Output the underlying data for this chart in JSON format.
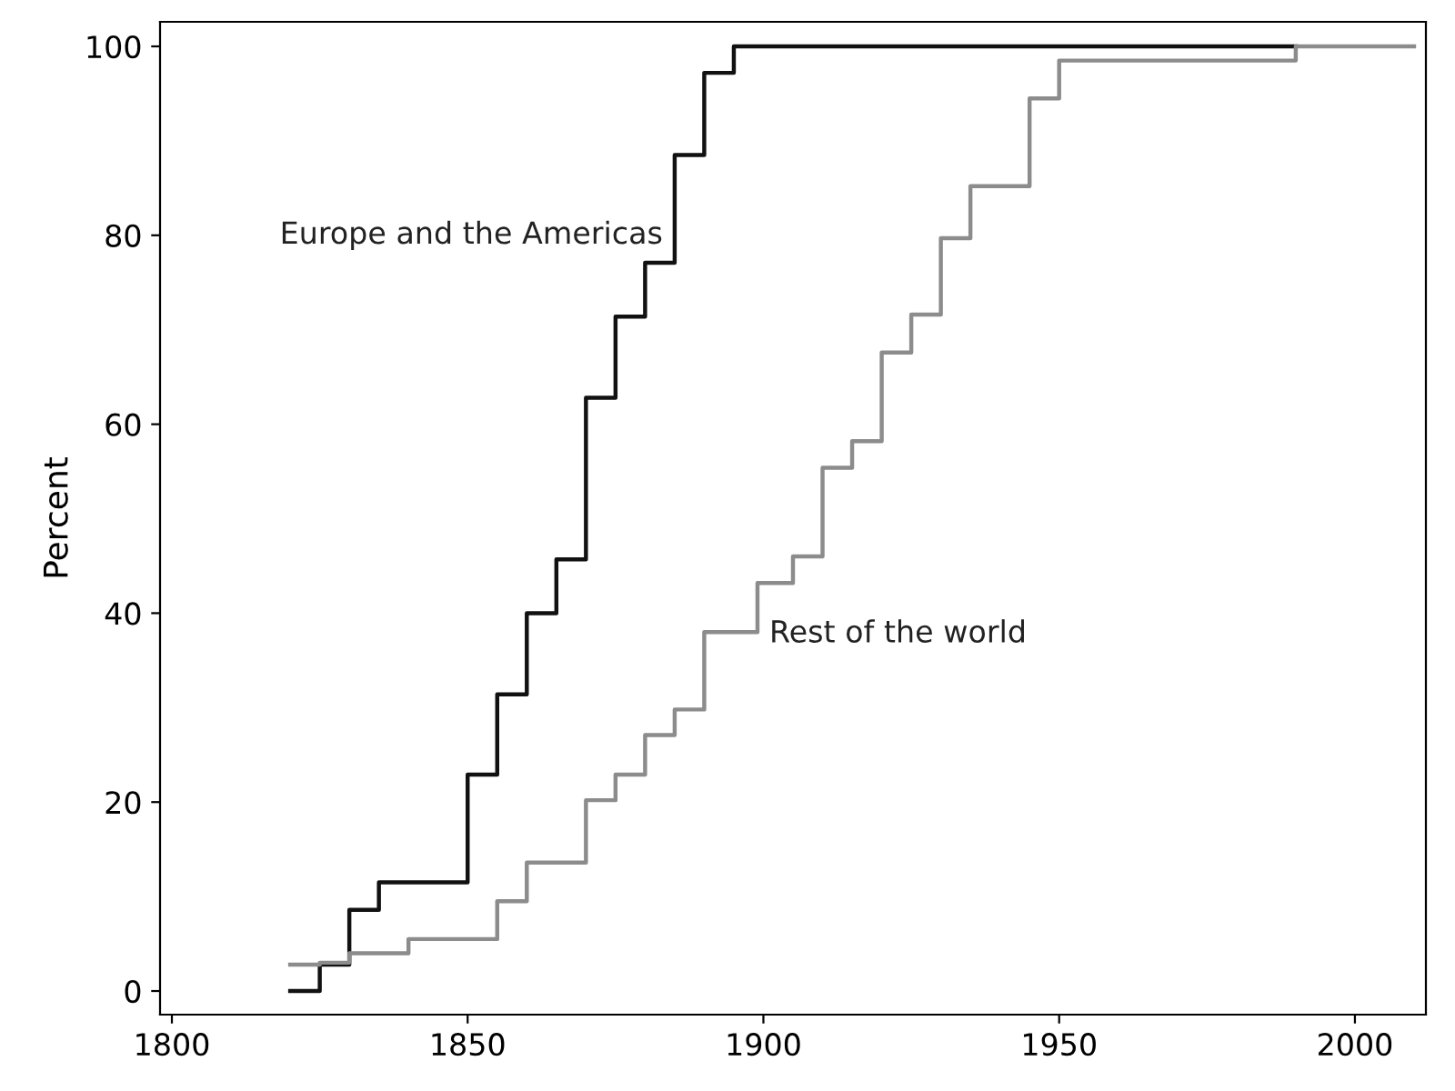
{
  "chart_data": {
    "type": "step",
    "ylabel": "Percent",
    "xlim": [
      1798,
      2012
    ],
    "ylim": [
      -2.5,
      102.6
    ],
    "xticks": [
      1800,
      1850,
      1900,
      1950,
      2000
    ],
    "yticks": [
      0,
      20,
      40,
      60,
      80,
      100
    ],
    "grid": false,
    "legend": false,
    "marker": "none",
    "line_style": "solid",
    "series": [
      {
        "name": "Europe and the Americas",
        "color": "#111111",
        "x": [
          1820,
          1825,
          1830,
          1835,
          1850,
          1855,
          1860,
          1865,
          1870,
          1875,
          1880,
          1885,
          1890,
          1895,
          1990
        ],
        "values": [
          0,
          2.8,
          8.6,
          11.5,
          22.9,
          31.4,
          40.0,
          45.7,
          62.8,
          71.4,
          77.1,
          88.5,
          97.2,
          100,
          100
        ]
      },
      {
        "name": "Rest of the world",
        "color": "#8c8c8c",
        "x": [
          1820,
          1825,
          1830,
          1840,
          1855,
          1860,
          1870,
          1875,
          1880,
          1885,
          1890,
          1899,
          1905,
          1910,
          1915,
          1920,
          1925,
          1930,
          1935,
          1945,
          1950,
          1990,
          2010
        ],
        "values": [
          2.8,
          3.0,
          4.0,
          5.5,
          9.5,
          13.6,
          20.2,
          22.9,
          27.1,
          29.8,
          38.0,
          43.2,
          46.0,
          55.4,
          58.2,
          67.6,
          71.6,
          79.7,
          85.2,
          94.5,
          98.5,
          100,
          100
        ]
      }
    ]
  }
}
